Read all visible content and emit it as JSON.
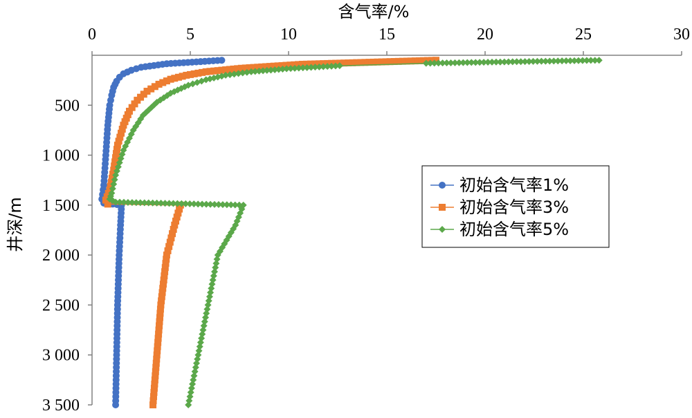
{
  "chart_data": {
    "type": "line",
    "xlabel": "含气率/%",
    "ylabel": "井深/m",
    "xlim": [
      0,
      30
    ],
    "ylim": [
      0,
      3500
    ],
    "x_axis_position": "top",
    "y_axis_reversed": true,
    "grid": false,
    "legend_position": "right",
    "xticks": [
      "0",
      "5",
      "10",
      "15",
      "20",
      "25",
      "30"
    ],
    "yticks": [
      "500",
      "1 000",
      "1 500",
      "2 000",
      "2 500",
      "3 000",
      "3 500"
    ],
    "series": [
      {
        "name": "初始含气率1%",
        "color": "#4472C4",
        "marker": "circle",
        "points": [
          [
            6.6,
            50
          ],
          [
            3.8,
            85
          ],
          [
            2.5,
            120
          ],
          [
            2.0,
            150
          ],
          [
            1.6,
            185
          ],
          [
            1.4,
            220
          ],
          [
            1.25,
            260
          ],
          [
            1.1,
            320
          ],
          [
            1.0,
            400
          ],
          [
            0.9,
            500
          ],
          [
            0.8,
            700
          ],
          [
            0.7,
            1000
          ],
          [
            0.6,
            1300
          ],
          [
            0.5,
            1440
          ],
          [
            0.6,
            1480
          ],
          [
            1.5,
            1500
          ],
          [
            1.45,
            1700
          ],
          [
            1.38,
            2000
          ],
          [
            1.3,
            2500
          ],
          [
            1.25,
            3000
          ],
          [
            1.2,
            3500
          ]
        ]
      },
      {
        "name": "初始含气率3%",
        "color": "#ED7D31",
        "marker": "square",
        "points": [
          [
            17.5,
            50
          ],
          [
            10.7,
            90
          ],
          [
            7.6,
            130
          ],
          [
            5.8,
            165
          ],
          [
            4.8,
            200
          ],
          [
            4.0,
            240
          ],
          [
            3.4,
            290
          ],
          [
            2.8,
            360
          ],
          [
            2.3,
            450
          ],
          [
            1.9,
            560
          ],
          [
            1.6,
            700
          ],
          [
            1.3,
            900
          ],
          [
            1.1,
            1150
          ],
          [
            0.9,
            1350
          ],
          [
            0.7,
            1450
          ],
          [
            0.8,
            1490
          ],
          [
            4.5,
            1500
          ],
          [
            4.2,
            1700
          ],
          [
            3.8,
            2000
          ],
          [
            3.5,
            2500
          ],
          [
            3.3,
            3000
          ],
          [
            3.1,
            3500
          ]
        ]
      },
      {
        "name": "初始含气率5%",
        "color": "#5BA84A",
        "marker": "diamond",
        "points": [
          [
            25.8,
            50
          ],
          [
            17.0,
            80
          ],
          [
            12.6,
            105
          ],
          [
            9.9,
            135
          ],
          [
            8.1,
            165
          ],
          [
            6.8,
            200
          ],
          [
            5.8,
            245
          ],
          [
            4.9,
            300
          ],
          [
            4.0,
            380
          ],
          [
            3.3,
            470
          ],
          [
            2.6,
            600
          ],
          [
            2.1,
            750
          ],
          [
            1.6,
            950
          ],
          [
            1.2,
            1200
          ],
          [
            1.0,
            1380
          ],
          [
            0.9,
            1440
          ],
          [
            1.2,
            1470
          ],
          [
            7.7,
            1500
          ],
          [
            7.3,
            1700
          ],
          [
            6.4,
            2000
          ],
          [
            5.9,
            2500
          ],
          [
            5.4,
            3000
          ],
          [
            4.9,
            3500
          ]
        ]
      }
    ]
  }
}
